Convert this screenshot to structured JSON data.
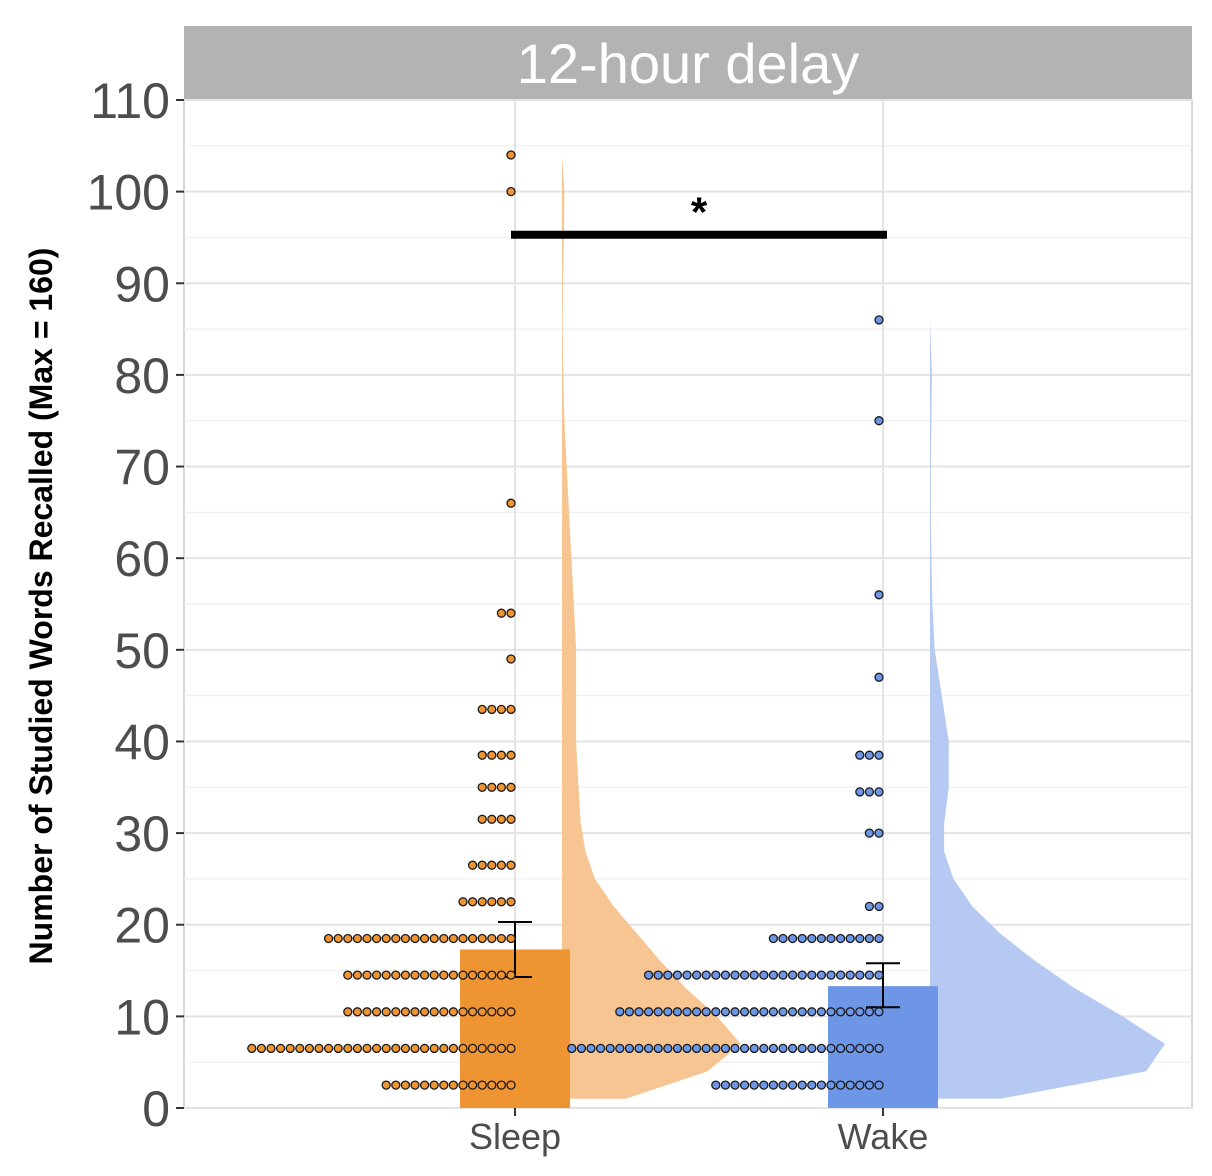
{
  "chart_data": {
    "type": "raincloud",
    "facet_title": "12-hour delay",
    "ylabel": "Number of Studied Words Recalled (Max = 160)",
    "xlabel": "",
    "ylim": [
      0,
      110
    ],
    "yticks": [
      0,
      10,
      20,
      30,
      40,
      50,
      60,
      70,
      80,
      90,
      100,
      110
    ],
    "grid": true,
    "categories": [
      "Sleep",
      "Wake"
    ],
    "bars": [
      {
        "category": "Sleep",
        "mean": 17.3,
        "se_low": 14.3,
        "se_high": 20.3
      },
      {
        "category": "Wake",
        "mean": 13.3,
        "se_low": 11.0,
        "se_high": 15.8
      }
    ],
    "dot_bins": [
      {
        "category": "Sleep",
        "bins": [
          {
            "y": 2.5,
            "count": 14
          },
          {
            "y": 6.5,
            "count": 28
          },
          {
            "y": 10.5,
            "count": 18
          },
          {
            "y": 14.5,
            "count": 18
          },
          {
            "y": 18.5,
            "count": 20
          },
          {
            "y": 22.5,
            "count": 6
          },
          {
            "y": 26.5,
            "count": 5
          },
          {
            "y": 31.5,
            "count": 4
          },
          {
            "y": 35.0,
            "count": 4
          },
          {
            "y": 38.5,
            "count": 4
          },
          {
            "y": 43.5,
            "count": 4
          },
          {
            "y": 49.0,
            "count": 1
          },
          {
            "y": 54.0,
            "count": 2
          },
          {
            "y": 66.0,
            "count": 1
          },
          {
            "y": 100.0,
            "count": 1
          },
          {
            "y": 104.0,
            "count": 1
          }
        ]
      },
      {
        "category": "Wake",
        "bins": [
          {
            "y": 2.5,
            "count": 18
          },
          {
            "y": 6.5,
            "count": 33
          },
          {
            "y": 10.5,
            "count": 28
          },
          {
            "y": 14.5,
            "count": 25
          },
          {
            "y": 18.5,
            "count": 12
          },
          {
            "y": 22.0,
            "count": 2
          },
          {
            "y": 30.0,
            "count": 2
          },
          {
            "y": 34.5,
            "count": 3
          },
          {
            "y": 38.5,
            "count": 3
          },
          {
            "y": 47.0,
            "count": 1
          },
          {
            "y": 56.0,
            "count": 1
          },
          {
            "y": 75.0,
            "count": 1
          },
          {
            "y": 86.0,
            "count": 1
          }
        ]
      }
    ],
    "densities": [
      {
        "category": "Sleep",
        "y": [
          1,
          4,
          7,
          10,
          13,
          16,
          19,
          22,
          25,
          28,
          31,
          35,
          40,
          45,
          50,
          55,
          60,
          65,
          70,
          75,
          80,
          85,
          90,
          95,
          100,
          104
        ],
        "width": [
          0.27,
          0.62,
          0.76,
          0.66,
          0.53,
          0.42,
          0.32,
          0.22,
          0.14,
          0.1,
          0.08,
          0.07,
          0.06,
          0.06,
          0.06,
          0.05,
          0.04,
          0.03,
          0.02,
          0.01,
          0.005,
          0.003,
          0.004,
          0.008,
          0.01,
          0.0
        ]
      },
      {
        "category": "Wake",
        "y": [
          1,
          4,
          7,
          10,
          13,
          16,
          19,
          22,
          25,
          28,
          31,
          35,
          40,
          45,
          50,
          55,
          60,
          65,
          70,
          75,
          80,
          86
        ],
        "width": [
          0.3,
          0.92,
          1.0,
          0.82,
          0.62,
          0.45,
          0.3,
          0.18,
          0.1,
          0.06,
          0.06,
          0.08,
          0.08,
          0.05,
          0.02,
          0.01,
          0.006,
          0.004,
          0.004,
          0.006,
          0.008,
          0.0
        ]
      }
    ],
    "significance": {
      "from": "Sleep",
      "to": "Wake",
      "y": 95.3,
      "label": "*"
    },
    "colors": {
      "Sleep": {
        "bar": "#ef9433",
        "dot": "#ef9433",
        "cloud": "#f6c592"
      },
      "Wake": {
        "bar": "#6e96e6",
        "dot": "#6e96e6",
        "cloud": "#b5c9f2"
      }
    }
  }
}
